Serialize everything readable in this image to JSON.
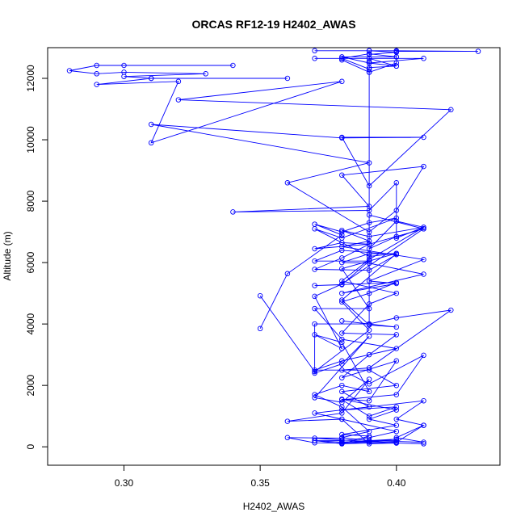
{
  "chart_data": {
    "type": "line",
    "title": "ORCAS RF12-19 H2402_AWAS",
    "xlabel": "H2402_AWAS",
    "ylabel": "Altitude (m)",
    "xlim": [
      0.272,
      0.438
    ],
    "ylim": [
      -600,
      13000
    ],
    "x_ticks": [
      0.3,
      0.35,
      0.4
    ],
    "x_tick_labels": [
      "0.30",
      "0.35",
      "0.40"
    ],
    "y_ticks": [
      0,
      2000,
      4000,
      6000,
      8000,
      10000,
      12000
    ],
    "y_tick_labels": [
      "0",
      "2000",
      "4000",
      "6000",
      "8000",
      "10000",
      "12000"
    ],
    "series_color": "#0000ff",
    "legend": "none",
    "grid": false,
    "series": [
      {
        "points": [
          [
            0.34,
            12420
          ],
          [
            0.3,
            12420
          ],
          [
            0.29,
            12420
          ],
          [
            0.28,
            12250
          ],
          [
            0.29,
            12150
          ],
          [
            0.3,
            12200
          ],
          [
            0.33,
            12150
          ],
          [
            0.3,
            12060
          ],
          [
            0.31,
            12000
          ],
          [
            0.36,
            12000
          ],
          [
            0.31,
            12000
          ],
          [
            0.29,
            11800
          ],
          [
            0.32,
            11900
          ],
          [
            0.31,
            9900
          ],
          [
            0.38,
            11900
          ],
          [
            0.32,
            11300
          ],
          [
            0.42,
            10980
          ],
          [
            0.39,
            8500
          ],
          [
            0.38,
            10080
          ],
          [
            0.41,
            10080
          ],
          [
            0.38,
            10060
          ],
          [
            0.31,
            10500
          ],
          [
            0.39,
            9250
          ],
          [
            0.36,
            8600
          ],
          [
            0.39,
            7000
          ],
          [
            0.4,
            7700
          ],
          [
            0.41,
            9130
          ],
          [
            0.38,
            8850
          ],
          [
            0.39,
            7830
          ],
          [
            0.34,
            7650
          ],
          [
            0.39,
            7700
          ],
          [
            0.4,
            8600
          ],
          [
            0.4,
            6800
          ],
          [
            0.41,
            7150
          ],
          [
            0.39,
            6850
          ],
          [
            0.38,
            7050
          ],
          [
            0.39,
            6700
          ],
          [
            0.38,
            6520
          ],
          [
            0.41,
            6100
          ],
          [
            0.39,
            5400
          ],
          [
            0.4,
            5320
          ],
          [
            0.38,
            5000
          ],
          [
            0.41,
            5620
          ],
          [
            0.39,
            5980
          ],
          [
            0.38,
            6000
          ],
          [
            0.39,
            6290
          ],
          [
            0.4,
            6290
          ],
          [
            0.38,
            4780
          ],
          [
            0.39,
            3970
          ],
          [
            0.4,
            3900
          ],
          [
            0.38,
            4100
          ],
          [
            0.39,
            4000
          ],
          [
            0.4,
            4200
          ],
          [
            0.42,
            4450
          ],
          [
            0.39,
            2570
          ],
          [
            0.38,
            2500
          ],
          [
            0.39,
            2050
          ],
          [
            0.41,
            2980
          ],
          [
            0.4,
            1700
          ],
          [
            0.38,
            1530
          ],
          [
            0.39,
            1000
          ],
          [
            0.4,
            1300
          ],
          [
            0.38,
            1200
          ],
          [
            0.41,
            1500
          ],
          [
            0.4,
            900
          ],
          [
            0.41,
            700
          ],
          [
            0.4,
            300
          ],
          [
            0.41,
            150
          ],
          [
            0.39,
            200
          ],
          [
            0.38,
            150
          ],
          [
            0.4,
            250
          ],
          [
            0.39,
            150
          ],
          [
            0.38,
            120
          ],
          [
            0.37,
            130
          ],
          [
            0.36,
            300
          ],
          [
            0.38,
            280
          ],
          [
            0.37,
            280
          ],
          [
            0.38,
            220
          ],
          [
            0.4,
            130
          ]
        ]
      },
      {
        "points": [
          [
            0.37,
            12650
          ],
          [
            0.41,
            12650
          ],
          [
            0.39,
            12500
          ],
          [
            0.4,
            12400
          ],
          [
            0.39,
            12500
          ],
          [
            0.38,
            12700
          ],
          [
            0.4,
            12700
          ],
          [
            0.4,
            12880
          ],
          [
            0.43,
            12880
          ],
          [
            0.4,
            12900
          ],
          [
            0.39,
            12900
          ],
          [
            0.37,
            12900
          ],
          [
            0.39,
            12900
          ],
          [
            0.4,
            12850
          ],
          [
            0.39,
            12780
          ],
          [
            0.39,
            12550
          ],
          [
            0.39,
            12300
          ],
          [
            0.38,
            12650
          ],
          [
            0.39,
            12650
          ],
          [
            0.4,
            12400
          ],
          [
            0.39,
            12350
          ],
          [
            0.39,
            12200
          ],
          [
            0.38,
            12600
          ],
          [
            0.38,
            12650
          ],
          [
            0.39,
            12800
          ],
          [
            0.4,
            12700
          ],
          [
            0.4,
            12500
          ],
          [
            0.39,
            12200
          ],
          [
            0.39,
            4000
          ],
          [
            0.37,
            4000
          ],
          [
            0.37,
            2400
          ],
          [
            0.38,
            2700
          ],
          [
            0.39,
            3600
          ],
          [
            0.37,
            1600
          ],
          [
            0.38,
            1450
          ],
          [
            0.39,
            2200
          ],
          [
            0.38,
            1100
          ],
          [
            0.36,
            830
          ],
          [
            0.38,
            900
          ],
          [
            0.39,
            100
          ],
          [
            0.4,
            120
          ],
          [
            0.41,
            100
          ]
        ]
      },
      {
        "points": [
          [
            0.35,
            4920
          ],
          [
            0.37,
            2450
          ],
          [
            0.39,
            3800
          ],
          [
            0.38,
            4720
          ],
          [
            0.39,
            5000
          ],
          [
            0.4,
            5350
          ],
          [
            0.37,
            5250
          ],
          [
            0.38,
            5280
          ],
          [
            0.39,
            6050
          ],
          [
            0.37,
            6050
          ],
          [
            0.38,
            6400
          ],
          [
            0.4,
            6260
          ],
          [
            0.39,
            5750
          ],
          [
            0.37,
            5780
          ],
          [
            0.38,
            6150
          ],
          [
            0.39,
            6600
          ],
          [
            0.37,
            6450
          ],
          [
            0.38,
            6650
          ],
          [
            0.39,
            6600
          ],
          [
            0.41,
            7100
          ],
          [
            0.38,
            5300
          ],
          [
            0.37,
            4900
          ],
          [
            0.38,
            3200
          ],
          [
            0.37,
            3650
          ],
          [
            0.38,
            3400
          ],
          [
            0.39,
            1800
          ],
          [
            0.38,
            2000
          ],
          [
            0.37,
            1700
          ],
          [
            0.38,
            1300
          ],
          [
            0.39,
            500
          ],
          [
            0.38,
            300
          ],
          [
            0.39,
            200
          ],
          [
            0.4,
            200
          ],
          [
            0.38,
            150
          ],
          [
            0.37,
            200
          ]
        ]
      },
      {
        "points": [
          [
            0.35,
            3850
          ],
          [
            0.36,
            5640
          ],
          [
            0.38,
            6900
          ],
          [
            0.37,
            7250
          ],
          [
            0.38,
            7000
          ],
          [
            0.39,
            7300
          ],
          [
            0.4,
            7450
          ],
          [
            0.38,
            6800
          ],
          [
            0.37,
            7100
          ],
          [
            0.39,
            6200
          ],
          [
            0.4,
            6300
          ],
          [
            0.38,
            5800
          ],
          [
            0.39,
            4500
          ],
          [
            0.37,
            4500
          ],
          [
            0.38,
            3500
          ],
          [
            0.4,
            3200
          ],
          [
            0.38,
            2800
          ],
          [
            0.37,
            2500
          ],
          [
            0.39,
            2500
          ],
          [
            0.4,
            2000
          ],
          [
            0.38,
            1800
          ],
          [
            0.39,
            1300
          ],
          [
            0.37,
            1100
          ],
          [
            0.38,
            900
          ],
          [
            0.4,
            500
          ],
          [
            0.39,
            300
          ],
          [
            0.38,
            200
          ],
          [
            0.37,
            200
          ],
          [
            0.38,
            100
          ]
        ]
      },
      {
        "points": [
          [
            0.39,
            7550
          ],
          [
            0.41,
            7100
          ],
          [
            0.4,
            6850
          ],
          [
            0.39,
            6450
          ],
          [
            0.4,
            7350
          ],
          [
            0.41,
            7150
          ],
          [
            0.39,
            6100
          ],
          [
            0.38,
            5400
          ],
          [
            0.4,
            5000
          ],
          [
            0.39,
            4650
          ],
          [
            0.38,
            3700
          ],
          [
            0.4,
            3650
          ],
          [
            0.39,
            3000
          ],
          [
            0.38,
            2250
          ],
          [
            0.4,
            2800
          ],
          [
            0.39,
            1500
          ],
          [
            0.38,
            1550
          ],
          [
            0.4,
            1200
          ],
          [
            0.39,
            900
          ],
          [
            0.4,
            700
          ],
          [
            0.38,
            400
          ],
          [
            0.39,
            350
          ],
          [
            0.38,
            100
          ],
          [
            0.4,
            150
          ],
          [
            0.41,
            700
          ]
        ]
      }
    ]
  }
}
